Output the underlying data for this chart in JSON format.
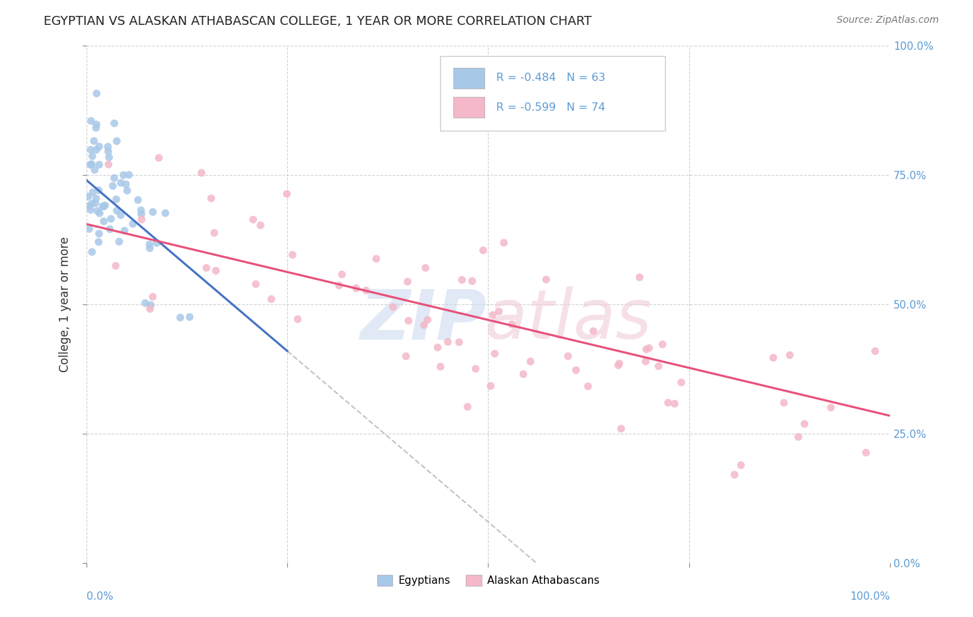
{
  "title": "EGYPTIAN VS ALASKAN ATHABASCAN COLLEGE, 1 YEAR OR MORE CORRELATION CHART",
  "source": "Source: ZipAtlas.com",
  "ylabel": "College, 1 year or more",
  "r_egyptian": -0.484,
  "n_egyptian": 63,
  "r_athabascan": -0.599,
  "n_athabascan": 74,
  "egyptian_color": "#a8c8e8",
  "athabascan_color": "#f4b8c8",
  "egyptian_line_color": "#4472c4",
  "athabascan_line_color": "#e8507a",
  "blue_label_color": "#5b9bd5",
  "legend_labels": [
    "Egyptians",
    "Alaskan Athabascans"
  ],
  "xlim": [
    0.0,
    1.0
  ],
  "ylim": [
    0.0,
    1.0
  ],
  "xticks": [
    0.0,
    0.25,
    0.5,
    0.75,
    1.0
  ],
  "yticks": [
    0.0,
    0.25,
    0.5,
    0.75,
    1.0
  ],
  "eg_line_x0": 0.0,
  "eg_line_y0": 0.74,
  "eg_line_x1": 0.25,
  "eg_line_y1": 0.41,
  "at_line_x0": 0.0,
  "at_line_y0": 0.655,
  "at_line_x1": 1.0,
  "at_line_y1": 0.285
}
